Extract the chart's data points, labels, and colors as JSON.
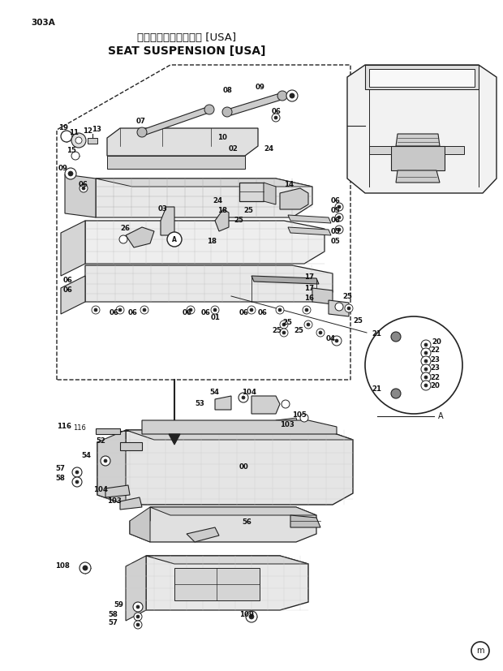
{
  "page_code": "303A",
  "title_japanese": "シートサスペンション [USA]",
  "title_english": "SEAT SUSPENSION [USA]",
  "background_color": "#ffffff",
  "line_color": "#222222",
  "fig_width": 6.2,
  "fig_height": 8.27,
  "dpi": 100
}
